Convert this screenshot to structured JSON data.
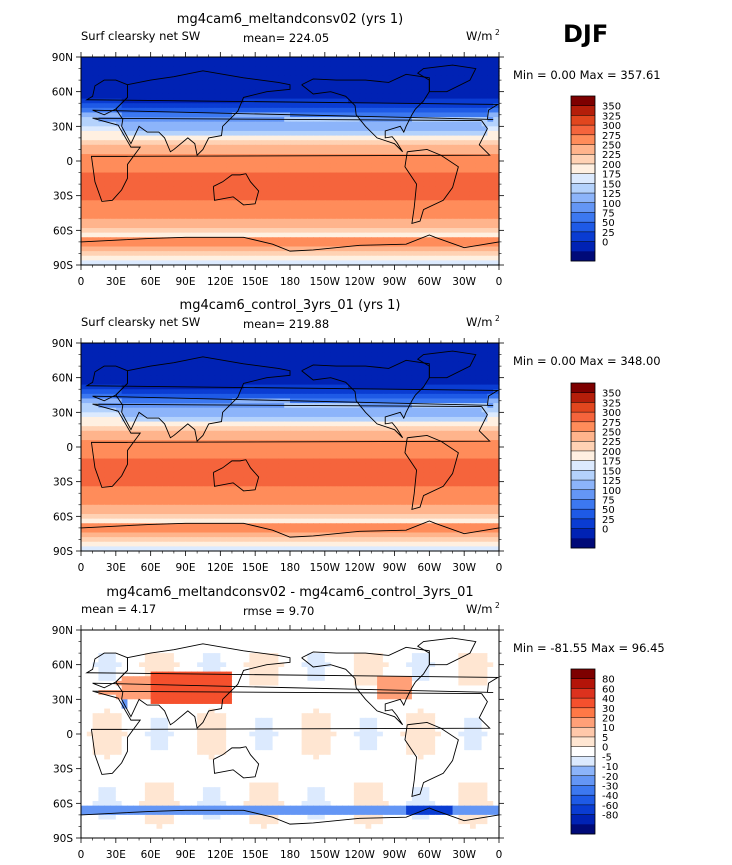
{
  "season": "DJF",
  "panels": [
    {
      "title": "mg4cam6_meltandconsv02 (yrs 1)",
      "left_label": "Surf clearsky net SW",
      "stat1": "mean= 224.05",
      "stat2": "",
      "units": "W/m",
      "units_sup": "2",
      "minmax": "Min =    0.00 Max = 357.61",
      "kind": "abs"
    },
    {
      "title": "mg4cam6_control_3yrs_01 (yrs 1)",
      "left_label": "Surf clearsky net SW",
      "stat1": "mean= 219.88",
      "stat2": "",
      "units": "W/m",
      "units_sup": "2",
      "minmax": "Min =    0.00 Max = 348.00",
      "kind": "abs"
    },
    {
      "title": "mg4cam6_meltandconsv02 - mg4cam6_control_3yrs_01",
      "left_label": "mean =    4.17",
      "stat1": "rmse =    9.70",
      "stat2": "",
      "units": "W/m",
      "units_sup": "2",
      "minmax": "Min = -81.55 Max =  96.45",
      "kind": "diff"
    }
  ],
  "chart_data": [
    {
      "type": "heatmap",
      "title": "mg4cam6_meltandconsv02 (yrs 1)",
      "variable": "Surf clearsky net SW",
      "mean": 224.05,
      "min": 0.0,
      "max": 357.61,
      "units": "W/m2",
      "xticks": [
        "0",
        "30E",
        "60E",
        "90E",
        "120E",
        "150E",
        "180",
        "150W",
        "120W",
        "90W",
        "60W",
        "30W",
        "0"
      ],
      "yticks": [
        "90N",
        "60N",
        "30N",
        "0",
        "30S",
        "60S",
        "90S"
      ],
      "levels": [
        0,
        25,
        50,
        75,
        100,
        125,
        150,
        175,
        200,
        225,
        250,
        275,
        300,
        325,
        350
      ],
      "colors": [
        "#000a78",
        "#0022b4",
        "#0a3cd2",
        "#1e5ae6",
        "#3c78f0",
        "#6496f5",
        "#8cb4fa",
        "#b4d2fc",
        "#dceafe",
        "#fff0e1",
        "#ffd2b4",
        "#ffb48c",
        "#ff8c5a",
        "#f5643c",
        "#e1461e",
        "#b41e0a",
        "#7d0000"
      ]
    },
    {
      "type": "heatmap",
      "title": "mg4cam6_control_3yrs_01 (yrs 1)",
      "variable": "Surf clearsky net SW",
      "mean": 219.88,
      "min": 0.0,
      "max": 348.0,
      "units": "W/m2",
      "xticks": [
        "0",
        "30E",
        "60E",
        "90E",
        "120E",
        "150E",
        "180",
        "150W",
        "120W",
        "90W",
        "60W",
        "30W",
        "0"
      ],
      "yticks": [
        "90N",
        "60N",
        "30N",
        "0",
        "30S",
        "60S",
        "90S"
      ],
      "levels": [
        0,
        25,
        50,
        75,
        100,
        125,
        150,
        175,
        200,
        225,
        250,
        275,
        300,
        325,
        350
      ],
      "colors": [
        "#000a78",
        "#0022b4",
        "#0a3cd2",
        "#1e5ae6",
        "#3c78f0",
        "#6496f5",
        "#8cb4fa",
        "#b4d2fc",
        "#dceafe",
        "#fff0e1",
        "#ffd2b4",
        "#ffb48c",
        "#ff8c5a",
        "#f5643c",
        "#e1461e",
        "#b41e0a",
        "#7d0000"
      ]
    },
    {
      "type": "heatmap",
      "title": "mg4cam6_meltandconsv02 - mg4cam6_control_3yrs_01",
      "variable": "difference",
      "mean": 4.17,
      "rmse": 9.7,
      "min": -81.55,
      "max": 96.45,
      "units": "W/m2",
      "xticks": [
        "0",
        "30E",
        "60E",
        "90E",
        "120E",
        "150E",
        "180",
        "150W",
        "120W",
        "90W",
        "60W",
        "30W",
        "0"
      ],
      "yticks": [
        "90N",
        "60N",
        "30N",
        "0",
        "30S",
        "60S",
        "90S"
      ],
      "levels": [
        -80,
        -60,
        -40,
        -30,
        -20,
        -10,
        -5,
        0,
        5,
        10,
        20,
        30,
        40,
        60,
        80
      ],
      "colors": [
        "#000a78",
        "#0022b4",
        "#0a3cd2",
        "#1e5ae6",
        "#3c78f0",
        "#6496f5",
        "#8cb4fa",
        "#dceafe",
        "#ffffff",
        "#ffe6d2",
        "#ffc8aa",
        "#ffa078",
        "#ff7846",
        "#f5502d",
        "#dc321e",
        "#b41409",
        "#7d0000"
      ]
    }
  ]
}
